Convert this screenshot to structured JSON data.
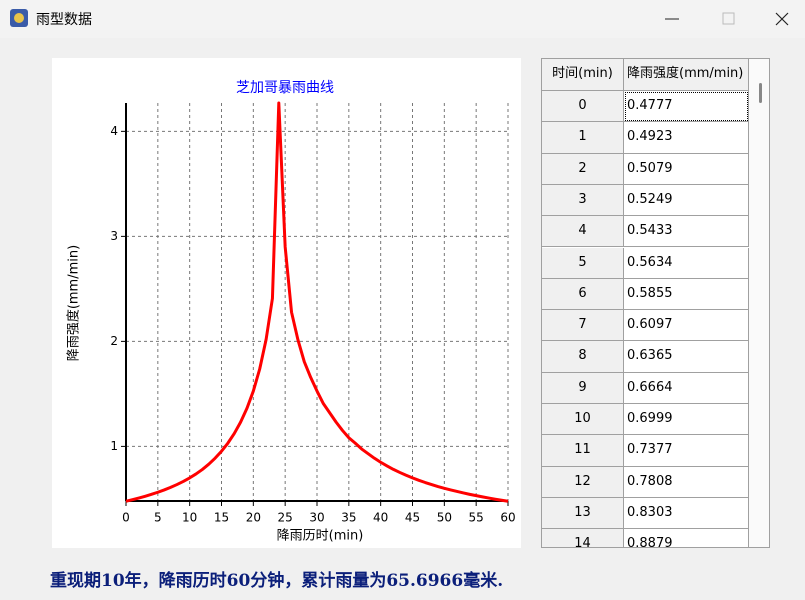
{
  "window": {
    "title": "雨型数据"
  },
  "chart_data": {
    "type": "line",
    "title": "芝加哥暴雨曲线",
    "x_label": "降雨历时(min)",
    "y_label": "降雨强度(mm/min)",
    "x": [
      0,
      1,
      2,
      3,
      4,
      5,
      6,
      7,
      8,
      9,
      10,
      11,
      12,
      13,
      14,
      15,
      16,
      17,
      18,
      19,
      20,
      21,
      22,
      23,
      24,
      25,
      26,
      27,
      28,
      29,
      30,
      31,
      32,
      33,
      34,
      35,
      36,
      37,
      38,
      39,
      40,
      41,
      42,
      43,
      44,
      45,
      46,
      47,
      48,
      49,
      50,
      51,
      52,
      53,
      54,
      55,
      56,
      57,
      58,
      59,
      60
    ],
    "values": [
      0.4777,
      0.4923,
      0.5079,
      0.5249,
      0.5433,
      0.5634,
      0.5855,
      0.6097,
      0.6365,
      0.6664,
      0.6999,
      0.7377,
      0.7808,
      0.8303,
      0.8879,
      0.954,
      1.031,
      1.122,
      1.231,
      1.363,
      1.527,
      1.737,
      2.016,
      2.409,
      4.27,
      2.9,
      2.278,
      2.016,
      1.807,
      1.658,
      1.527,
      1.407,
      1.319,
      1.231,
      1.152,
      1.082,
      1.031,
      0.976,
      0.932,
      0.8879,
      0.849,
      0.814,
      0.7808,
      0.752,
      0.725,
      0.6999,
      0.677,
      0.656,
      0.6365,
      0.618,
      0.601,
      0.5855,
      0.571,
      0.557,
      0.5433,
      0.531,
      0.519,
      0.5079,
      0.497,
      0.487,
      0.4777
    ],
    "color": "#ff0000",
    "xlim": [
      0,
      60
    ],
    "xticks": [
      0,
      5,
      10,
      15,
      20,
      25,
      30,
      35,
      40,
      45,
      50,
      55,
      60
    ],
    "ylim": [
      0.48,
      4.27
    ],
    "yticks": [
      1,
      2,
      3,
      4
    ],
    "grid": true
  },
  "table": {
    "header": [
      "时间(min)",
      "降雨强度(mm/min)"
    ],
    "rows": [
      [
        "0",
        "0.4777"
      ],
      [
        "1",
        "0.4923"
      ],
      [
        "2",
        "0.5079"
      ],
      [
        "3",
        "0.5249"
      ],
      [
        "4",
        "0.5433"
      ],
      [
        "5",
        "0.5634"
      ],
      [
        "6",
        "0.5855"
      ],
      [
        "7",
        "0.6097"
      ],
      [
        "8",
        "0.6365"
      ],
      [
        "9",
        "0.6664"
      ],
      [
        "10",
        "0.6999"
      ],
      [
        "11",
        "0.7377"
      ],
      [
        "12",
        "0.7808"
      ],
      [
        "13",
        "0.8303"
      ],
      [
        "14",
        "0.8879"
      ]
    ]
  },
  "footer": "重现期10年，降雨历时60分钟，累计雨量为65.6966毫米."
}
